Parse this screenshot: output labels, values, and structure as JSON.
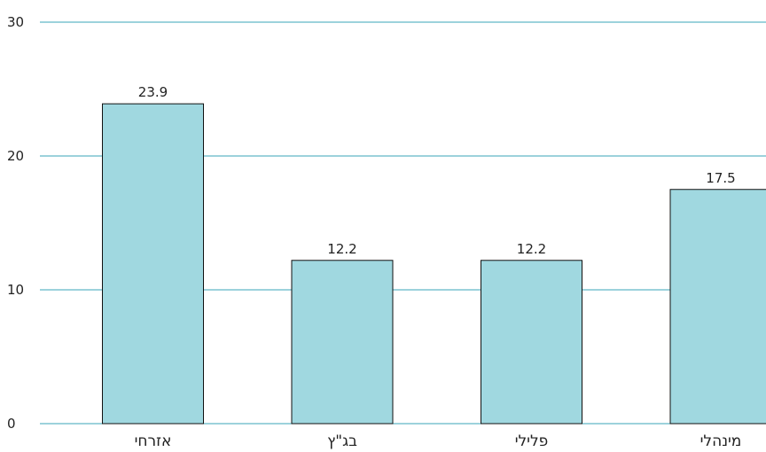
{
  "chart_data": {
    "type": "bar",
    "categories": [
      "אזרחי",
      "בג\"ץ",
      "פלילי",
      "מינהלי"
    ],
    "values": [
      23.9,
      12.2,
      12.2,
      17.5
    ],
    "data_labels": [
      "23.9",
      "12.2",
      "12.2",
      "17.5"
    ],
    "title": "",
    "xlabel": "",
    "ylabel": "",
    "ylim": [
      0,
      30
    ],
    "yticks": [
      0,
      10,
      20,
      30
    ],
    "ytick_labels": [
      "0",
      "10",
      "20",
      "30"
    ],
    "grid": true,
    "legend": "none",
    "colors": {
      "bar_fill": "#a0d8e0",
      "bar_stroke": "#111111",
      "grid": "#3aa6b8",
      "text": "#222222"
    }
  }
}
